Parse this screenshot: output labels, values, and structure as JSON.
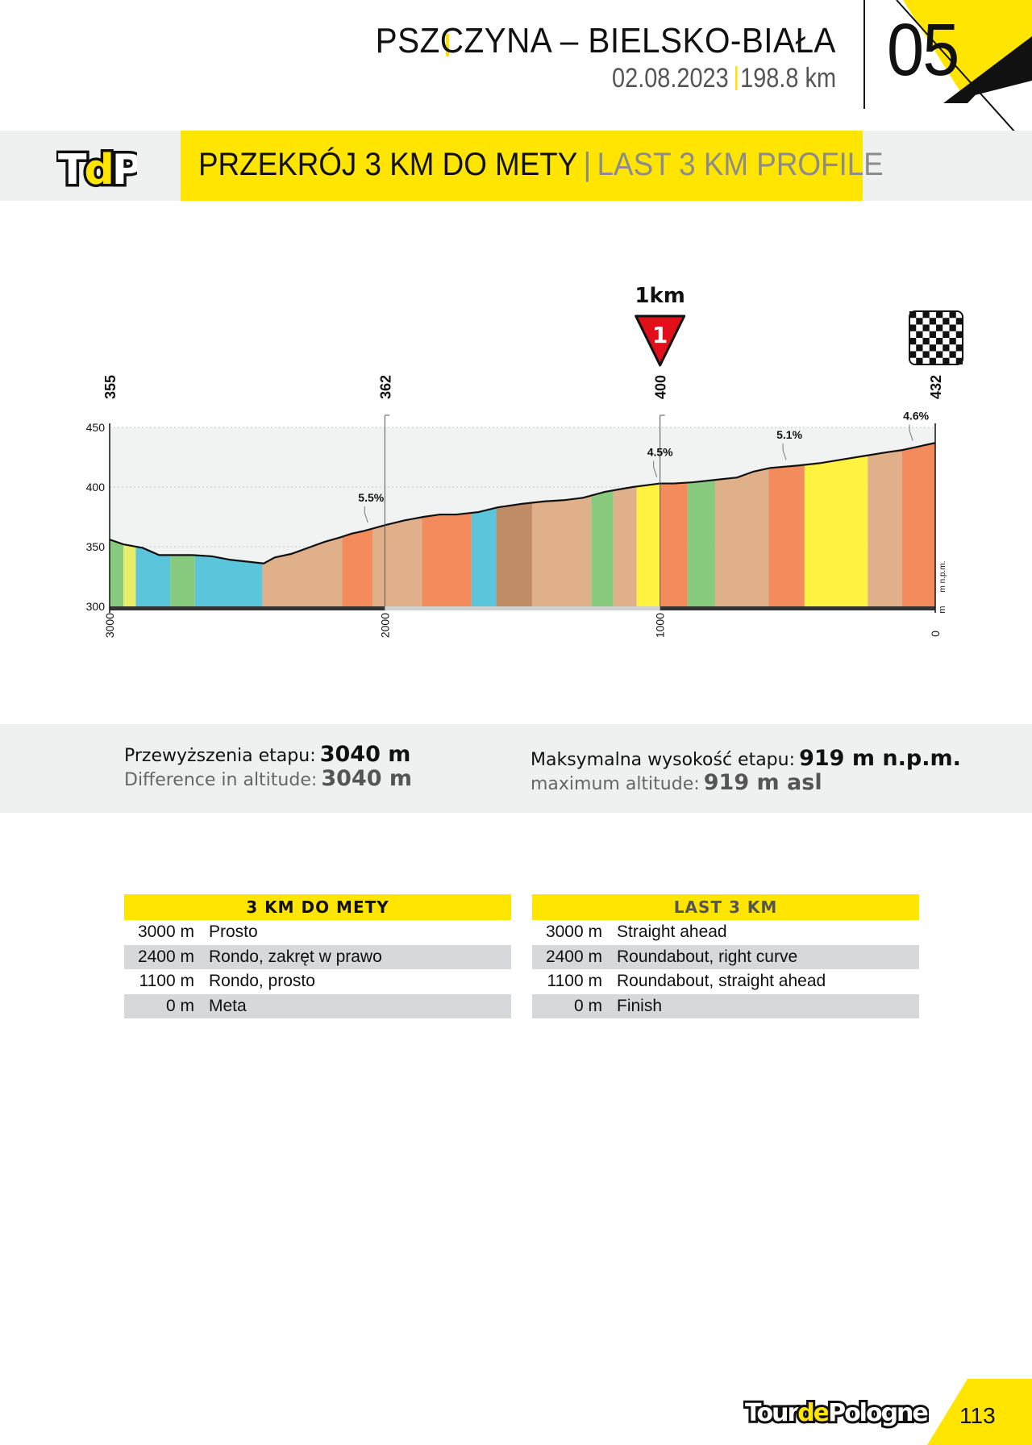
{
  "header": {
    "route": "PSZCZYNA – BIELSKO-BIAŁA",
    "date": "02.08.2023",
    "distance": "198.8 km",
    "stage_number": "05"
  },
  "title_band": {
    "logo_text": "TdP",
    "title_pl": "PRZEKRÓJ 3 KM DO METY",
    "separator": "|",
    "title_en": "LAST 3 KM PROFILE"
  },
  "chart_data": {
    "type": "area",
    "title": "",
    "xlabel": "",
    "ylabel": "m n.p.m.",
    "ylabel_unit": "m",
    "x_direction": "reversed",
    "xlim": [
      3000,
      0
    ],
    "ylim": [
      300,
      450
    ],
    "y_ticks": [
      300,
      350,
      400,
      450
    ],
    "x_ticks": [
      "3000",
      "2000",
      "1000",
      "0"
    ],
    "top_markers": [
      "355",
      "362",
      "400",
      "432"
    ],
    "km_marker": "1km",
    "km_marker_number": "1",
    "finish_icon": "checkered-flag-icon",
    "gradient_labels": [
      "5.5%",
      "4.5%",
      "5.1%",
      "4.6%"
    ],
    "profile": [
      [
        3000,
        356
      ],
      [
        2950,
        352
      ],
      [
        2880,
        349
      ],
      [
        2860,
        347
      ],
      [
        2820,
        343
      ],
      [
        2700,
        343
      ],
      [
        2630,
        342
      ],
      [
        2560,
        339
      ],
      [
        2480,
        337
      ],
      [
        2440,
        336
      ],
      [
        2400,
        341
      ],
      [
        2340,
        344
      ],
      [
        2280,
        349
      ],
      [
        2220,
        354
      ],
      [
        2160,
        358
      ],
      [
        2120,
        361
      ],
      [
        2080,
        363
      ],
      [
        2000,
        368
      ],
      [
        1930,
        372
      ],
      [
        1860,
        375
      ],
      [
        1800,
        377
      ],
      [
        1740,
        377
      ],
      [
        1660,
        379
      ],
      [
        1590,
        383
      ],
      [
        1500,
        386
      ],
      [
        1420,
        388
      ],
      [
        1350,
        389
      ],
      [
        1280,
        391
      ],
      [
        1200,
        396
      ],
      [
        1100,
        400
      ],
      [
        1000,
        403
      ],
      [
        950,
        403
      ],
      [
        880,
        404
      ],
      [
        800,
        406
      ],
      [
        720,
        408
      ],
      [
        660,
        413
      ],
      [
        600,
        416
      ],
      [
        500,
        418
      ],
      [
        420,
        420
      ],
      [
        340,
        423
      ],
      [
        260,
        426
      ],
      [
        180,
        429
      ],
      [
        120,
        431
      ],
      [
        80,
        433
      ],
      [
        0,
        437
      ]
    ],
    "segments": [
      {
        "from": 3000,
        "to": 2950,
        "color": "#88cb7f"
      },
      {
        "from": 2950,
        "to": 2905,
        "color": "#e7ec6a"
      },
      {
        "from": 2905,
        "to": 2780,
        "color": "#5bc5dc"
      },
      {
        "from": 2780,
        "to": 2690,
        "color": "#88cb7f"
      },
      {
        "from": 2690,
        "to": 2445,
        "color": "#5bc5dc"
      },
      {
        "from": 2445,
        "to": 2155,
        "color": "#dfb08a"
      },
      {
        "from": 2155,
        "to": 2045,
        "color": "#f48b5c"
      },
      {
        "from": 2045,
        "to": 1865,
        "color": "#dfb08a"
      },
      {
        "from": 1865,
        "to": 1685,
        "color": "#f48b5c"
      },
      {
        "from": 1685,
        "to": 1595,
        "color": "#5bc5dc"
      },
      {
        "from": 1595,
        "to": 1465,
        "color": "#bf8c66"
      },
      {
        "from": 1465,
        "to": 1250,
        "color": "#dfb08a"
      },
      {
        "from": 1250,
        "to": 1170,
        "color": "#88cb7f"
      },
      {
        "from": 1170,
        "to": 1085,
        "color": "#dfb08a"
      },
      {
        "from": 1085,
        "to": 1000,
        "color": "#fff240"
      },
      {
        "from": 1000,
        "to": 900,
        "color": "#f48b5c"
      },
      {
        "from": 900,
        "to": 800,
        "color": "#88cb7f"
      },
      {
        "from": 800,
        "to": 605,
        "color": "#dfb08a"
      },
      {
        "from": 605,
        "to": 475,
        "color": "#f48b5c"
      },
      {
        "from": 475,
        "to": 245,
        "color": "#fff240"
      },
      {
        "from": 245,
        "to": 120,
        "color": "#dfb08a"
      },
      {
        "from": 120,
        "to": 0,
        "color": "#f48b5c"
      }
    ]
  },
  "stats": {
    "climb_label_pl": "Przewyższenia etapu:",
    "climb_value_pl": "3040 m",
    "climb_label_en": "Difference in altitude:",
    "climb_value_en": "3040 m",
    "max_label_pl": "Maksymalna wysokość etapu:",
    "max_value_pl": "919 m n.p.m.",
    "max_label_en": "maximum altitude:",
    "max_value_en": "919 m asl"
  },
  "table_pl": {
    "heading": "3 KM DO METY",
    "rows": [
      {
        "dist": "3000 m",
        "text": "Prosto"
      },
      {
        "dist": "2400 m",
        "text": "Rondo, zakręt w prawo"
      },
      {
        "dist": "1100 m",
        "text": "Rondo, prosto"
      },
      {
        "dist": "0 m",
        "text": "Meta"
      }
    ]
  },
  "table_en": {
    "heading": "LAST 3 KM",
    "rows": [
      {
        "dist": "3000 m",
        "text": "Straight ahead"
      },
      {
        "dist": "2400 m",
        "text": "Roundabout, right curve"
      },
      {
        "dist": "1100 m",
        "text": "Roundabout, straight ahead"
      },
      {
        "dist": "0 m",
        "text": "Finish"
      }
    ]
  },
  "footer": {
    "brand_part1": "Tour",
    "brand_part2": "de",
    "brand_part3": "Pologne",
    "page_number": "113"
  },
  "colors": {
    "accent": "#ffe500",
    "band_grey": "#eff0f0",
    "row_grey": "#d7d8d9"
  }
}
